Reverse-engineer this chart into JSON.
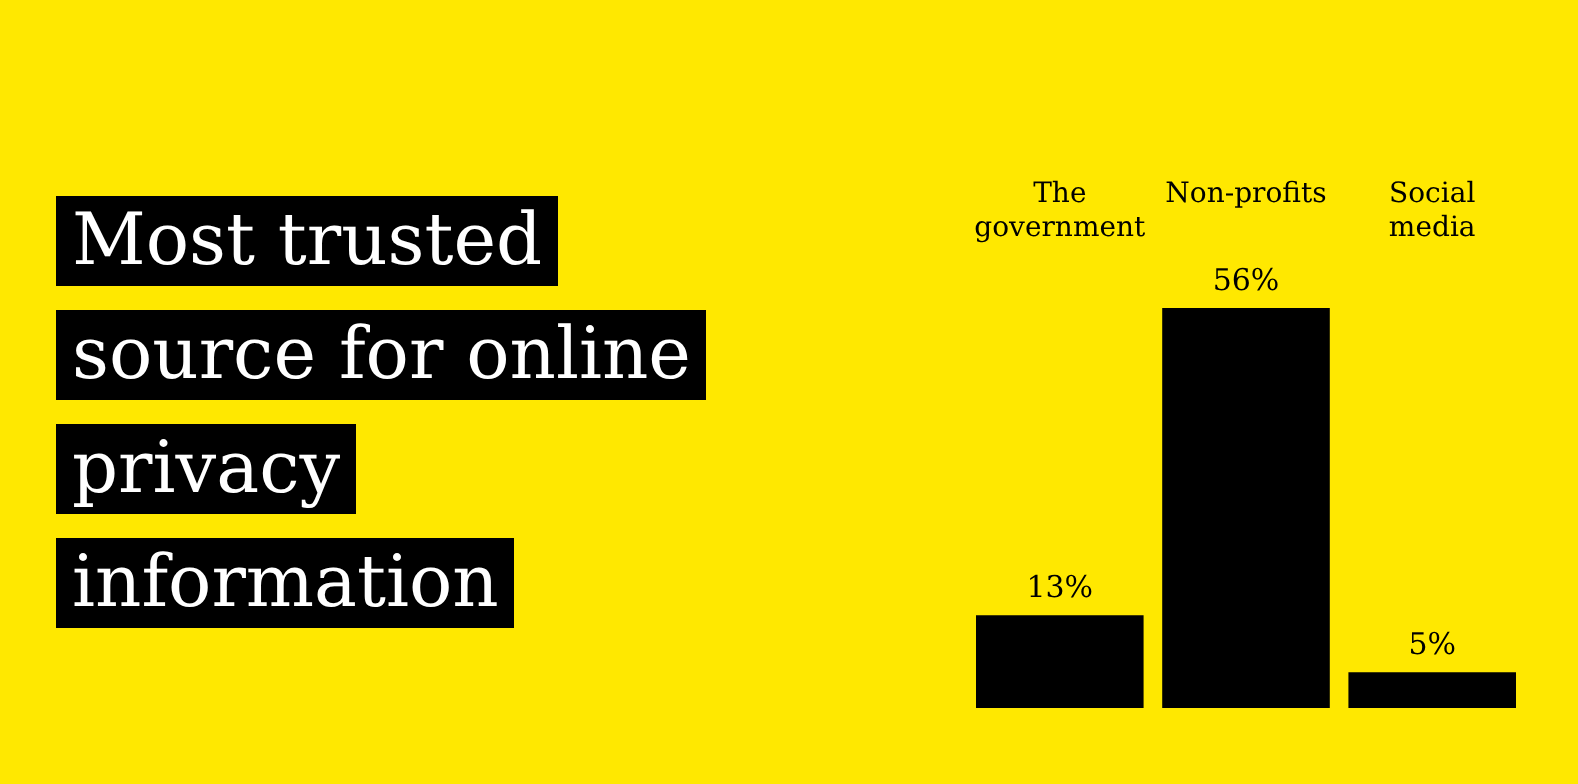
{
  "chart_data": {
    "type": "bar",
    "title": "Most trusted source for online privacy information",
    "categories": [
      "The government",
      "Non-profits",
      "Social media"
    ],
    "values": [
      13,
      56,
      5
    ],
    "color": "#000000",
    "value_labels": [
      "13%",
      "56%",
      "5%"
    ]
  }
}
